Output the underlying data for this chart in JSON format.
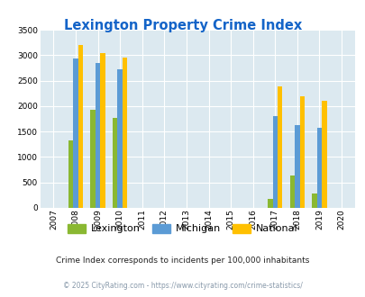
{
  "title": "Lexington Property Crime Index",
  "years": [
    2007,
    2008,
    2009,
    2010,
    2011,
    2012,
    2013,
    2014,
    2015,
    2016,
    2017,
    2018,
    2019,
    2020
  ],
  "lexington": [
    null,
    1320,
    1920,
    1760,
    null,
    null,
    null,
    null,
    null,
    null,
    175,
    640,
    290,
    null
  ],
  "michigan": [
    null,
    2930,
    2840,
    2720,
    null,
    null,
    null,
    null,
    null,
    null,
    1800,
    1630,
    1570,
    null
  ],
  "national": [
    null,
    3200,
    3040,
    2950,
    null,
    null,
    null,
    null,
    null,
    null,
    2380,
    2200,
    2110,
    null
  ],
  "lexington_color": "#8ab832",
  "michigan_color": "#5b9bd5",
  "national_color": "#ffc000",
  "bg_color": "#dce9f0",
  "grid_color": "#ffffff",
  "title_color": "#1464c8",
  "ylim": [
    0,
    3500
  ],
  "yticks": [
    0,
    500,
    1000,
    1500,
    2000,
    2500,
    3000,
    3500
  ],
  "footnote1": "Crime Index corresponds to incidents per 100,000 inhabitants",
  "footnote2": "© 2025 CityRating.com - https://www.cityrating.com/crime-statistics/",
  "bar_width": 0.22
}
